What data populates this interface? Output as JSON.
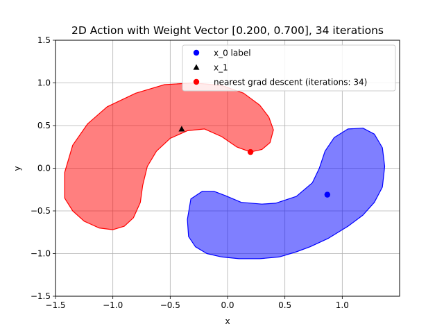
{
  "chart_data": {
    "type": "scatter",
    "title": "2D Action with Weight Vector [0.200, 0.700], 34 iterations",
    "xlabel": "x",
    "ylabel": "y",
    "xlim": [
      -1.5,
      1.5
    ],
    "ylim": [
      -1.5,
      1.5
    ],
    "xticks": [
      "−1.5",
      "−1.0",
      "−0.5",
      "0.0",
      "0.5",
      "1.0"
    ],
    "xtick_values": [
      -1.5,
      -1.0,
      -0.5,
      0.0,
      0.5,
      1.0
    ],
    "yticks": [
      "−1.5",
      "−1.0",
      "−0.5",
      "0.0",
      "0.5",
      "1.0",
      "1.5"
    ],
    "ytick_values": [
      -1.5,
      -1.0,
      -0.5,
      0.0,
      0.5,
      1.0,
      1.5
    ],
    "grid": true,
    "legend_position": "top-right",
    "regions": [
      {
        "color": "#ff0000",
        "points": [
          [
            -1.42,
            -0.05
          ],
          [
            -1.42,
            -0.35
          ],
          [
            -1.35,
            -0.5
          ],
          [
            -1.25,
            -0.62
          ],
          [
            -1.12,
            -0.7
          ],
          [
            -1.0,
            -0.72
          ],
          [
            -0.9,
            -0.68
          ],
          [
            -0.82,
            -0.58
          ],
          [
            -0.76,
            -0.4
          ],
          [
            -0.74,
            -0.2
          ],
          [
            -0.7,
            0.02
          ],
          [
            -0.62,
            0.2
          ],
          [
            -0.5,
            0.35
          ],
          [
            -0.35,
            0.44
          ],
          [
            -0.2,
            0.46
          ],
          [
            -0.05,
            0.37
          ],
          [
            0.08,
            0.25
          ],
          [
            0.2,
            0.19
          ],
          [
            0.3,
            0.22
          ],
          [
            0.37,
            0.3
          ],
          [
            0.4,
            0.45
          ],
          [
            0.36,
            0.6
          ],
          [
            0.28,
            0.74
          ],
          [
            0.14,
            0.88
          ],
          [
            -0.05,
            0.97
          ],
          [
            -0.3,
            1.0
          ],
          [
            -0.55,
            0.98
          ],
          [
            -0.8,
            0.88
          ],
          [
            -1.05,
            0.72
          ],
          [
            -1.22,
            0.52
          ],
          [
            -1.35,
            0.27
          ]
        ]
      },
      {
        "color": "#0000ff",
        "points": [
          [
            -0.35,
            -0.6
          ],
          [
            -0.34,
            -0.8
          ],
          [
            -0.28,
            -0.92
          ],
          [
            -0.18,
            -1.0
          ],
          [
            -0.05,
            -1.04
          ],
          [
            0.1,
            -1.06
          ],
          [
            0.28,
            -1.06
          ],
          [
            0.45,
            -1.04
          ],
          [
            0.6,
            -0.98
          ],
          [
            0.72,
            -0.92
          ],
          [
            0.88,
            -0.82
          ],
          [
            1.05,
            -0.68
          ],
          [
            1.18,
            -0.55
          ],
          [
            1.28,
            -0.4
          ],
          [
            1.35,
            -0.22
          ],
          [
            1.37,
            0.02
          ],
          [
            1.35,
            0.24
          ],
          [
            1.28,
            0.4
          ],
          [
            1.18,
            0.47
          ],
          [
            1.05,
            0.46
          ],
          [
            0.93,
            0.36
          ],
          [
            0.85,
            0.2
          ],
          [
            0.8,
            0.0
          ],
          [
            0.74,
            -0.17
          ],
          [
            0.6,
            -0.33
          ],
          [
            0.42,
            -0.41
          ],
          [
            0.3,
            -0.42
          ],
          [
            0.12,
            -0.4
          ],
          [
            -0.02,
            -0.32
          ],
          [
            -0.12,
            -0.27
          ],
          [
            -0.22,
            -0.27
          ],
          [
            -0.32,
            -0.36
          ]
        ]
      }
    ],
    "series": [
      {
        "name": "x_0 label",
        "marker": "circle",
        "color": "#0000ff",
        "x": [
          0.87
        ],
        "y": [
          -0.31
        ]
      },
      {
        "name": "x_1",
        "marker": "triangle",
        "color": "#000000",
        "x": [
          -0.4
        ],
        "y": [
          0.46
        ]
      },
      {
        "name": "nearest grad descent (iterations: 34)",
        "marker": "circle",
        "color": "#ff0000",
        "x": [
          0.2
        ],
        "y": [
          0.19
        ]
      }
    ]
  }
}
